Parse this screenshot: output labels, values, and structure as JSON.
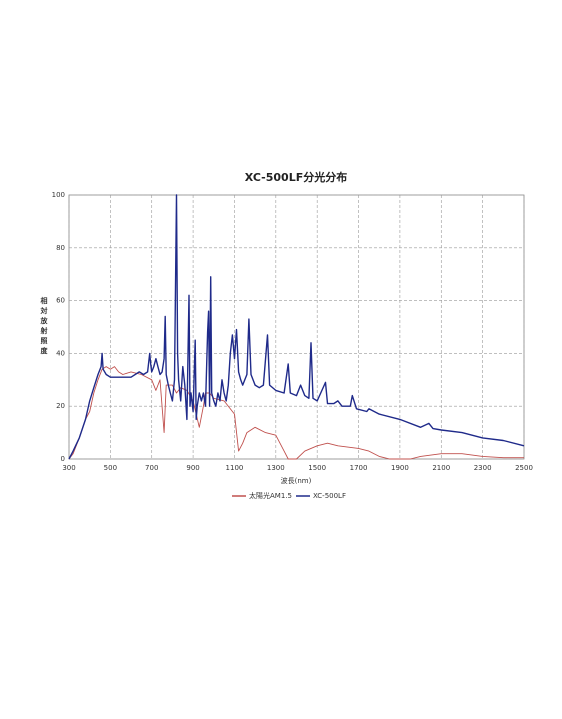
{
  "chart_data": {
    "type": "line",
    "title": "XC-500LF分光分布",
    "x_label": "波長(nm)",
    "y_label": "相対放射照度",
    "xlim": [
      300,
      2500
    ],
    "xticks": [
      300,
      500,
      700,
      900,
      1100,
      1300,
      1500,
      1700,
      1900,
      2100,
      2300,
      2500
    ],
    "ylim": [
      0,
      100
    ],
    "yticks": [
      0,
      20,
      40,
      60,
      80,
      100
    ],
    "grid": true,
    "legend": "bottom",
    "series": [
      {
        "name": "太陽光AM1.5",
        "color": "#c0504d",
        "x": [
          300,
          320,
          350,
          380,
          400,
          420,
          440,
          460,
          480,
          500,
          520,
          540,
          560,
          600,
          650,
          700,
          720,
          740,
          760,
          770,
          800,
          820,
          840,
          870,
          900,
          930,
          950,
          960,
          980,
          1000,
          1050,
          1100,
          1120,
          1140,
          1160,
          1200,
          1250,
          1300,
          1340,
          1360,
          1400,
          1440,
          1500,
          1550,
          1600,
          1700,
          1750,
          1800,
          1850,
          1950,
          2000,
          2100,
          2200,
          2300,
          2400,
          2500
        ],
        "values": [
          0,
          2,
          8,
          15,
          18,
          25,
          30,
          34,
          35,
          34,
          35,
          33,
          32,
          33,
          32,
          30,
          26,
          30,
          10,
          28,
          28,
          25,
          27,
          26,
          22,
          12,
          20,
          25,
          25,
          23,
          22,
          17,
          3,
          6,
          10,
          12,
          10,
          9,
          3,
          0,
          0,
          3,
          5,
          6,
          5,
          4,
          3,
          1,
          0,
          0,
          1,
          2,
          2,
          1,
          0.5,
          0.5
        ]
      },
      {
        "name": "XC-500LF",
        "color": "#1f2a8a",
        "x": [
          300,
          320,
          350,
          380,
          400,
          420,
          440,
          455,
          460,
          465,
          480,
          500,
          550,
          600,
          640,
          660,
          680,
          690,
          695,
          700,
          710,
          720,
          730,
          740,
          750,
          760,
          765,
          770,
          780,
          790,
          800,
          810,
          820,
          825,
          830,
          840,
          850,
          860,
          870,
          880,
          885,
          890,
          900,
          910,
          915,
          920,
          930,
          940,
          950,
          960,
          970,
          975,
          980,
          985,
          990,
          1000,
          1010,
          1020,
          1030,
          1040,
          1050,
          1060,
          1070,
          1080,
          1090,
          1100,
          1110,
          1120,
          1130,
          1140,
          1150,
          1160,
          1170,
          1180,
          1200,
          1220,
          1240,
          1260,
          1270,
          1300,
          1340,
          1360,
          1370,
          1400,
          1420,
          1440,
          1460,
          1470,
          1480,
          1500,
          1540,
          1550,
          1580,
          1600,
          1620,
          1660,
          1670,
          1690,
          1740,
          1750,
          1800,
          1900,
          2000,
          2040,
          2060,
          2100,
          2200,
          2300,
          2400,
          2500
        ],
        "values": [
          0,
          3,
          8,
          15,
          22,
          27,
          32,
          35,
          40,
          34,
          32,
          31,
          31,
          31,
          33,
          32,
          33,
          40,
          36,
          33,
          35,
          38,
          35,
          32,
          33,
          38,
          54,
          32,
          28,
          25,
          22,
          30,
          100,
          40,
          30,
          22,
          35,
          28,
          15,
          62,
          20,
          25,
          18,
          45,
          15,
          20,
          25,
          22,
          25,
          20,
          48,
          56,
          20,
          69,
          25,
          22,
          20,
          25,
          22,
          30,
          25,
          22,
          28,
          40,
          47,
          38,
          49,
          33,
          30,
          28,
          30,
          32,
          53,
          32,
          28,
          27,
          28,
          47,
          28,
          26,
          25,
          36,
          25,
          24,
          28,
          24,
          23,
          44,
          23,
          22,
          29,
          21,
          21,
          22,
          20,
          20,
          24,
          19,
          18,
          19,
          17,
          15,
          12,
          13.5,
          11.5,
          11,
          10,
          8,
          7,
          5
        ]
      }
    ]
  }
}
